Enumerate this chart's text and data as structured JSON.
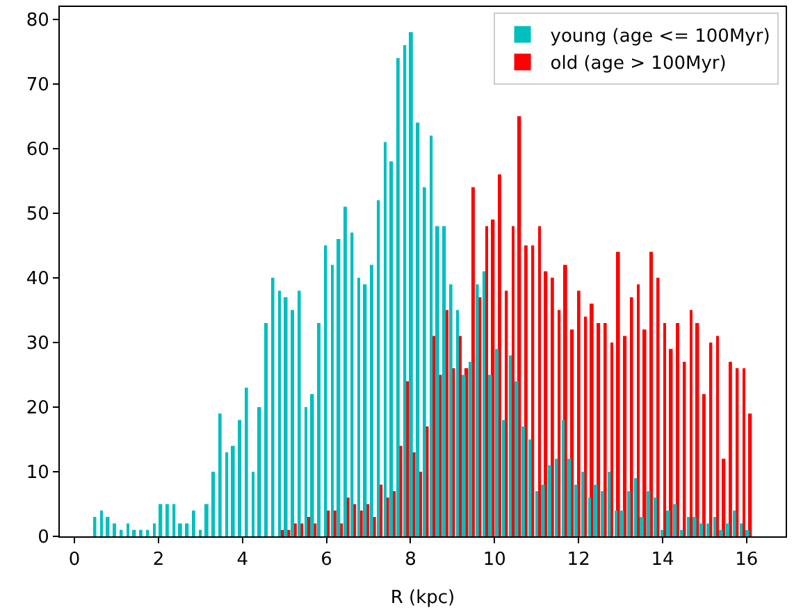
{
  "chart_data": {
    "type": "histogram",
    "xlabel": "R (kpc)",
    "bins": [
      0.44,
      0.597,
      0.754,
      0.911,
      1.068,
      1.225,
      1.382,
      1.539,
      1.696,
      1.853,
      2.01,
      2.167,
      2.324,
      2.481,
      2.638,
      2.795,
      2.952,
      3.109,
      3.266,
      3.423,
      3.58,
      3.737,
      3.894,
      4.051,
      4.208,
      4.365,
      4.522,
      4.679,
      4.836,
      4.993,
      5.15,
      5.307,
      5.464,
      5.621,
      5.778,
      5.935,
      6.092,
      6.249,
      6.406,
      6.563,
      6.72,
      6.877,
      7.034,
      7.191,
      7.348,
      7.505,
      7.662,
      7.819,
      7.976,
      8.133,
      8.29,
      8.447,
      8.604,
      8.761,
      8.918,
      9.075,
      9.232,
      9.389,
      9.546,
      9.703,
      9.86,
      10.017,
      10.174,
      10.331,
      10.488,
      10.645,
      10.802,
      10.959,
      11.116,
      11.273,
      11.43,
      11.587,
      11.744,
      11.901,
      12.058,
      12.215,
      12.372,
      12.529,
      12.686,
      12.843,
      13.0,
      13.157,
      13.314,
      13.471,
      13.628,
      13.785,
      13.942,
      14.099,
      14.256,
      14.413,
      14.57,
      14.727,
      14.884,
      15.041,
      15.198,
      15.355,
      15.512,
      15.669,
      15.826,
      15.983,
      16.14
    ],
    "series": [
      {
        "name": "young (age <= 100Myr)",
        "color": "#00bfbf",
        "values": [
          3,
          4,
          3,
          2,
          1,
          2,
          1,
          1,
          1,
          2,
          5,
          5,
          5,
          2,
          2,
          4,
          1,
          5,
          10,
          19,
          13,
          14,
          18,
          23,
          10,
          20,
          33,
          40,
          38,
          37,
          35,
          38,
          20,
          22,
          33,
          45,
          42,
          46,
          51,
          47,
          40,
          39,
          42,
          52,
          61,
          58,
          74,
          76,
          78,
          64,
          54,
          62,
          48,
          48,
          39,
          35,
          25,
          27,
          39,
          41,
          25,
          29,
          18,
          28,
          24,
          17,
          15,
          7,
          8,
          11,
          12,
          18,
          12,
          8,
          10,
          6,
          8,
          7,
          10,
          4,
          4,
          7,
          9,
          3,
          7,
          6,
          1,
          4,
          5,
          1,
          3,
          3,
          2,
          2,
          3,
          1,
          2,
          4,
          2,
          1
        ]
      },
      {
        "name": "old (age > 100Myr)",
        "color": "#ff0000",
        "values": [
          0,
          0,
          0,
          0,
          0,
          0,
          0,
          0,
          0,
          0,
          0,
          0,
          0,
          0,
          0,
          0,
          0,
          0,
          0,
          0,
          0,
          0,
          0,
          0,
          0,
          0,
          0,
          0,
          1,
          1,
          2,
          2,
          3,
          2,
          0,
          4,
          4,
          2,
          6,
          5,
          4,
          5,
          3,
          8,
          6,
          7,
          14,
          24,
          13,
          10,
          17,
          31,
          25,
          35,
          26,
          31,
          26,
          54,
          37,
          48,
          49,
          56,
          38,
          48,
          65,
          45,
          45,
          48,
          41,
          40,
          35,
          42,
          32,
          38,
          34,
          36,
          33,
          33,
          30,
          44,
          31,
          37,
          39,
          32,
          44,
          40,
          33,
          29,
          33,
          27,
          35,
          33,
          22,
          30,
          31,
          12,
          27,
          26,
          26,
          19
        ]
      }
    ],
    "xlim": [
      -0.35,
      16.93
    ],
    "ylim": [
      0,
      81.9
    ],
    "xticks": [
      0,
      2,
      4,
      6,
      8,
      10,
      12,
      14,
      16
    ],
    "yticks": [
      0,
      10,
      20,
      30,
      40,
      50,
      60,
      70,
      80
    ],
    "legend": "top right"
  }
}
